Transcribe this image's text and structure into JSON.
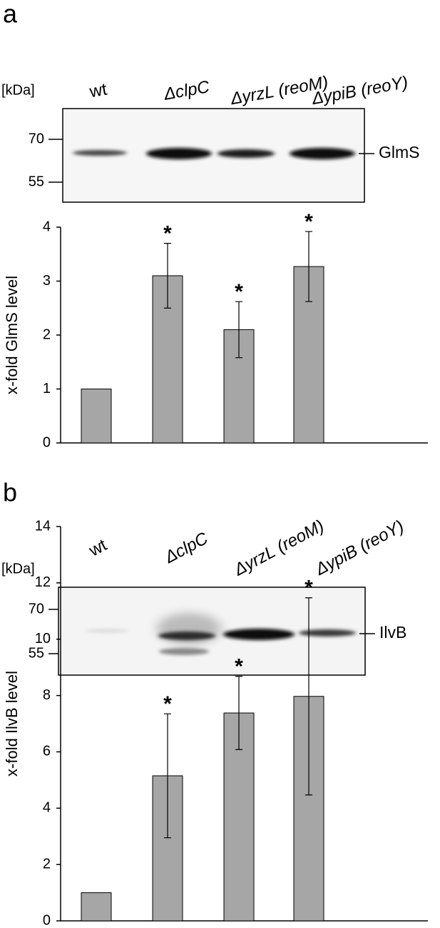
{
  "chart_data": [
    {
      "type": "bar",
      "panel": "a",
      "ylabel": "x-fold GlmS level",
      "categories": [
        "wt",
        "ΔclpC",
        "ΔyrzL (reoM)",
        "ΔypiB (reoY)"
      ],
      "values": [
        1,
        3.1,
        2.1,
        3.27
      ],
      "errors": [
        null,
        0.6,
        0.52,
        0.65
      ],
      "annotations": [
        null,
        "*",
        "*",
        "*"
      ],
      "color": "#a6a6a6",
      "ylim": [
        0,
        4
      ],
      "yticks": [
        0,
        1,
        2,
        3,
        4
      ],
      "blot": {
        "unit": "[kDa]",
        "markers": [
          70,
          55
        ],
        "protein": "GlmS"
      }
    },
    {
      "type": "bar",
      "panel": "b",
      "ylabel": "x-fold IlvB level",
      "categories": [
        "wt",
        "ΔclpC",
        "ΔyrzL (reoM)",
        "ΔypiB (reoY)"
      ],
      "values": [
        1,
        5.15,
        7.38,
        7.97
      ],
      "errors": [
        null,
        2.2,
        1.3,
        3.5
      ],
      "annotations": [
        null,
        "*",
        "*",
        "*"
      ],
      "color": "#a6a6a6",
      "ylim": [
        0,
        14
      ],
      "yticks": [
        0,
        2,
        4,
        6,
        8,
        10,
        12,
        14
      ],
      "blot": {
        "unit": "[kDa]",
        "markers": [
          70,
          55
        ],
        "protein": "IlvB"
      }
    }
  ]
}
